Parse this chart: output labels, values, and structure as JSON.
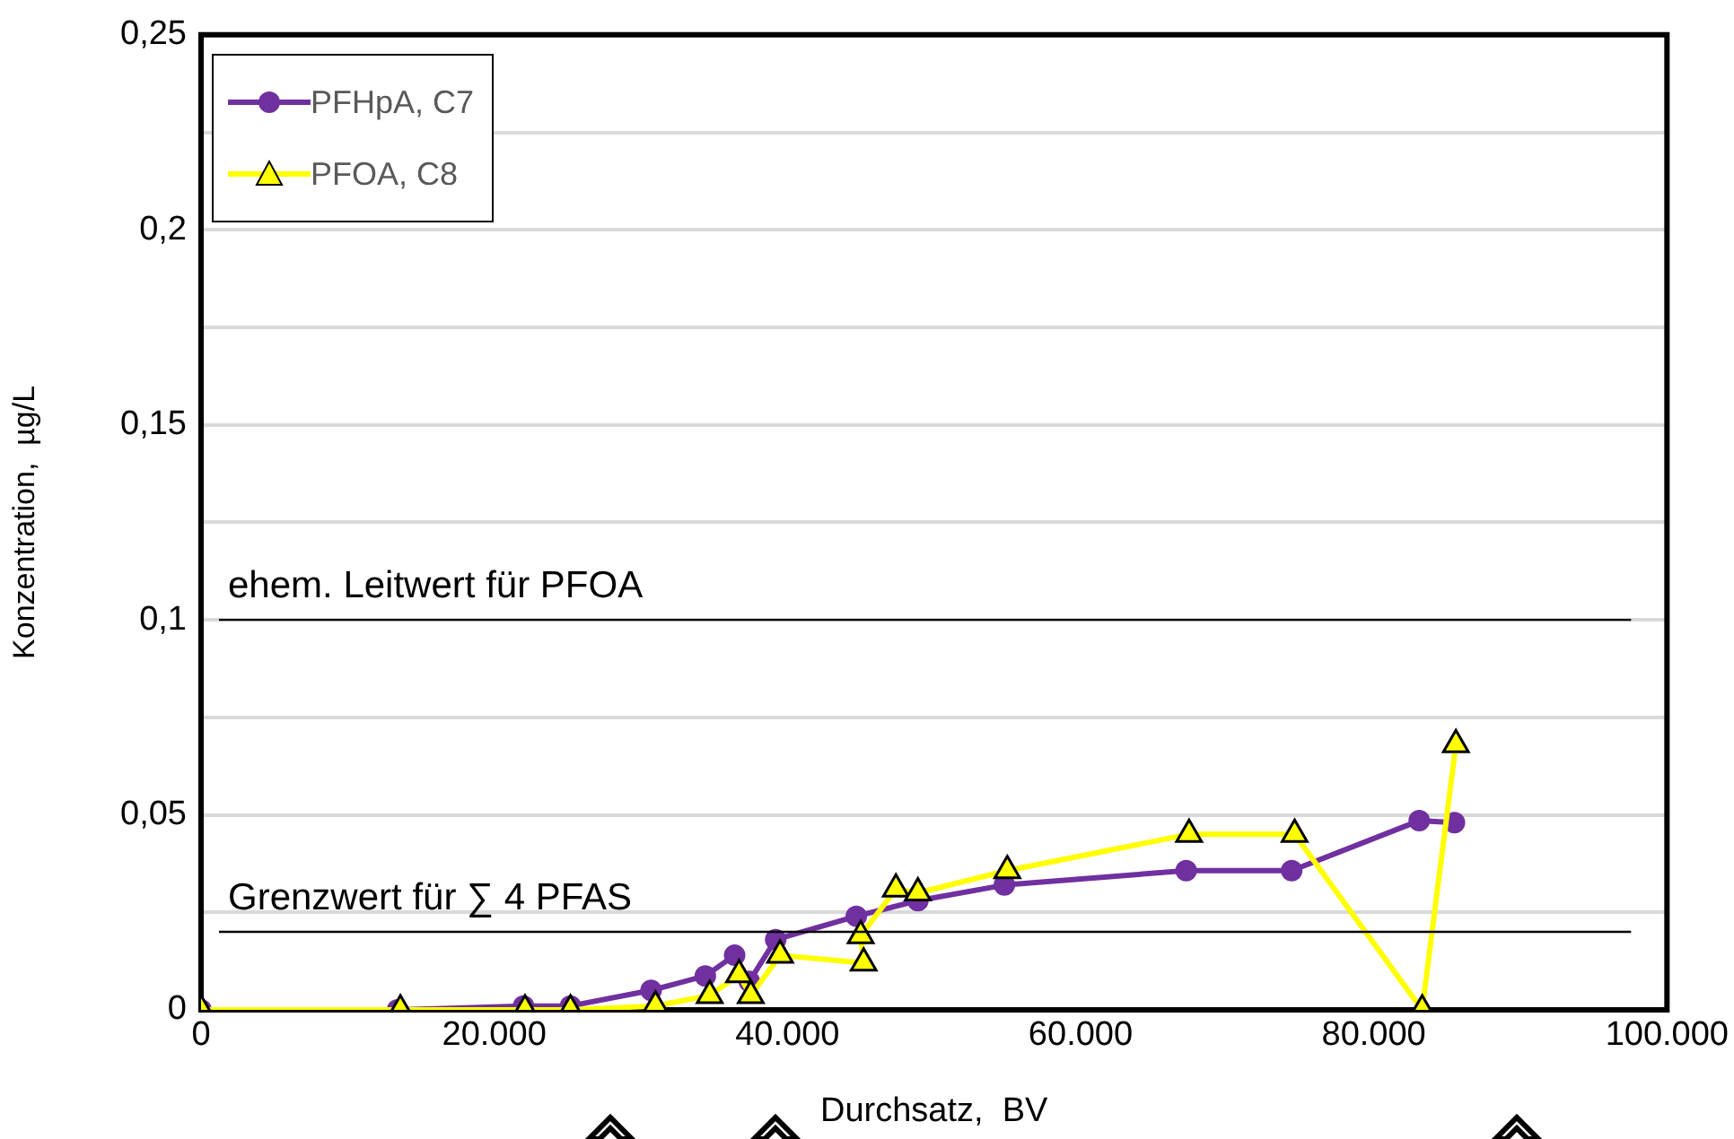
{
  "chart_data": {
    "type": "line",
    "xlabel": "Durchsatz,  BV",
    "ylabel": "Konzentration,  µg/L",
    "xlim": [
      0,
      100000
    ],
    "xticks": [
      0,
      {
        "value": 20000,
        "label": "20.000"
      },
      {
        "value": 40000,
        "label": "40.000"
      },
      {
        "value": 60000,
        "label": "60.000"
      },
      {
        "value": 80000,
        "label": "80.000"
      },
      {
        "value": 100000,
        "label": "100.000"
      }
    ],
    "ylim": [
      0,
      0.25
    ],
    "yticks": [
      0,
      {
        "value": 0.025,
        "label": null
      },
      {
        "value": 0.05,
        "label": "0,05"
      },
      {
        "value": 0.075,
        "label": null
      },
      {
        "value": 0.1,
        "label": "0,1"
      },
      {
        "value": 0.125,
        "label": null
      },
      {
        "value": 0.15,
        "label": "0,15"
      },
      {
        "value": 0.175,
        "label": null
      },
      {
        "value": 0.2,
        "label": "0,2"
      },
      {
        "value": 0.225,
        "label": null
      },
      {
        "value": 0.25,
        "label": "0,25"
      }
    ],
    "grid": "y",
    "legend": "top left",
    "line_style": "solid",
    "series": [
      {
        "name": "PFHpA, C7",
        "color": "#7030a0",
        "marker": "circle",
        "x": [
          0,
          13400,
          22000,
          25200,
          30700,
          34400,
          36400,
          37400,
          39200,
          44700,
          48900,
          54800,
          67200,
          74400,
          83100,
          85500
        ],
        "values": [
          0,
          0,
          0.001,
          0.001,
          0.005,
          0.0087,
          0.014,
          0.0073,
          0.018,
          0.024,
          0.028,
          0.032,
          0.0357,
          0.0357,
          0.0485,
          0.048
        ]
      },
      {
        "name": "PFOA, C8",
        "color": "#ffff00",
        "marker": "triangle",
        "x": [
          0,
          13600,
          22100,
          25200,
          31000,
          34700,
          36700,
          37500,
          39500,
          45200,
          45000,
          47400,
          48900,
          55000,
          67400,
          74600,
          83300,
          85600
        ],
        "values": [
          0,
          0,
          0,
          0,
          0.001,
          0.0037,
          0.009,
          0.0037,
          0.014,
          0.012,
          0.019,
          0.031,
          0.03,
          0.0357,
          0.045,
          0.045,
          0,
          0.068
        ]
      }
    ],
    "ref_lines": [
      {
        "axis": "y",
        "value": 0.1,
        "label": "ehem. Leitwert für PFOA",
        "color": "#000000"
      },
      {
        "axis": "y",
        "value": 0.02,
        "label": "Grenzwert für ∑ 4 PFAS",
        "color": "#000000"
      }
    ]
  }
}
